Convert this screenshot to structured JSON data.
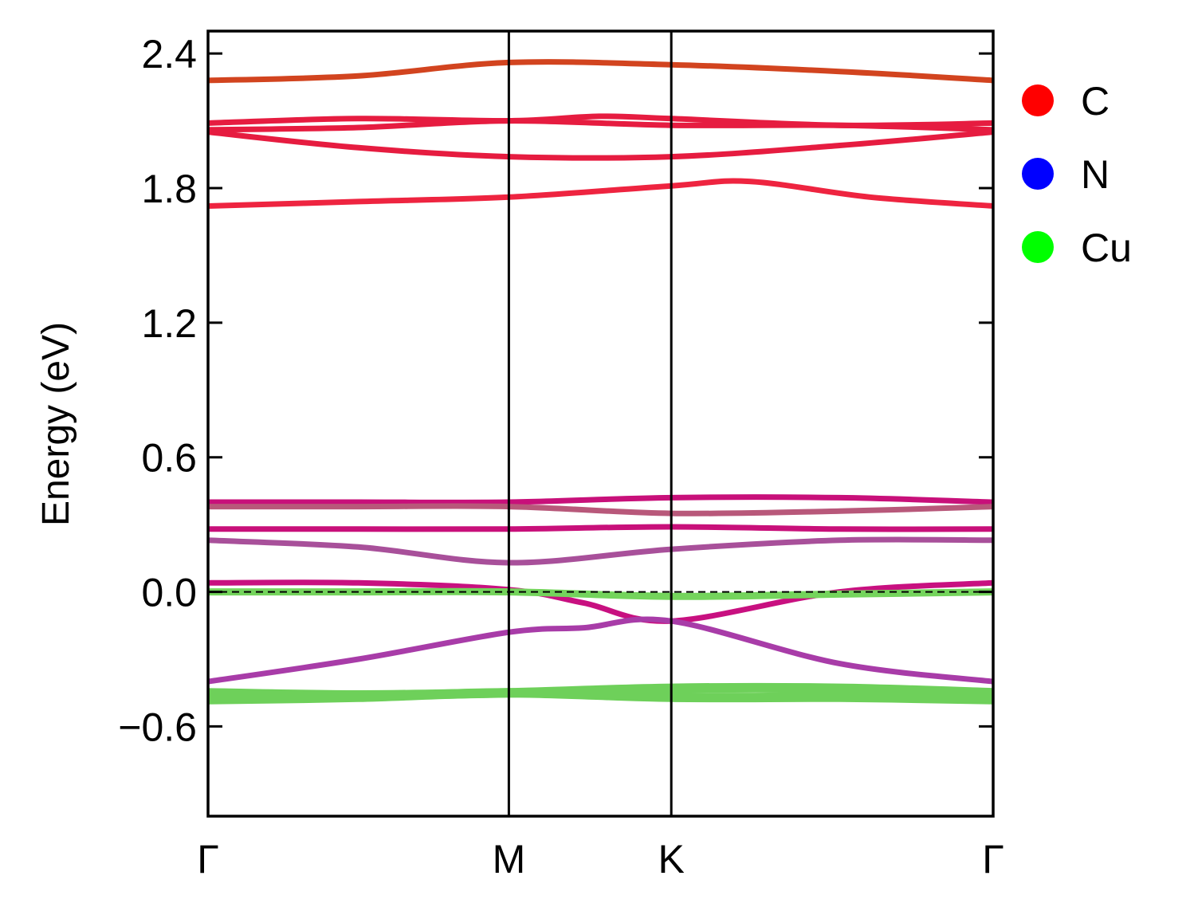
{
  "chart_data": {
    "type": "line",
    "ylabel": "Energy (eV)",
    "ylim": [
      -1.0,
      2.5
    ],
    "yticks": [
      2.4,
      1.8,
      1.2,
      0.6,
      0.0,
      -0.6
    ],
    "ytick_labels": [
      "2.4",
      "1.8",
      "1.2",
      "0.6",
      "0.0",
      "−0.6"
    ],
    "kpath_labels": [
      "Γ",
      "M",
      "K",
      "Γ"
    ],
    "kpath_positions": [
      0,
      1,
      1.54,
      2.61
    ],
    "fermi_level": 0.0,
    "legend": [
      {
        "name": "C",
        "color": "#ff0000"
      },
      {
        "name": "N",
        "color": "#0000ff"
      },
      {
        "name": "Cu",
        "color": "#00ff00"
      }
    ],
    "series": [
      {
        "color": "#d2441f",
        "width": 7,
        "x": [
          0,
          0.5,
          1,
          1.54,
          2.1,
          2.61
        ],
        "y": [
          2.28,
          2.3,
          2.36,
          2.35,
          2.32,
          2.28
        ]
      },
      {
        "color": "#e61c40",
        "width": 7,
        "x": [
          0,
          0.5,
          1,
          1.3,
          1.54,
          2.1,
          2.61
        ],
        "y": [
          2.09,
          2.11,
          2.1,
          2.12,
          2.11,
          2.08,
          2.09
        ]
      },
      {
        "color": "#e61c40",
        "width": 7,
        "x": [
          0,
          0.5,
          1,
          1.54,
          2.1,
          2.61
        ],
        "y": [
          2.06,
          2.07,
          2.1,
          2.08,
          2.08,
          2.06
        ]
      },
      {
        "color": "#e61c40",
        "width": 7,
        "x": [
          0,
          0.5,
          1,
          1.54,
          2.1,
          2.61
        ],
        "y": [
          2.05,
          1.98,
          1.94,
          1.94,
          1.99,
          2.05
        ]
      },
      {
        "color": "#ee2440",
        "width": 7,
        "x": [
          0,
          0.5,
          1,
          1.54,
          1.8,
          2.2,
          2.61
        ],
        "y": [
          1.72,
          1.74,
          1.76,
          1.81,
          1.83,
          1.76,
          1.72
        ]
      },
      {
        "color": "#c8107a",
        "width": 7,
        "x": [
          0,
          0.5,
          1,
          1.54,
          2.1,
          2.61
        ],
        "y": [
          0.4,
          0.4,
          0.4,
          0.42,
          0.42,
          0.4
        ]
      },
      {
        "color": "#b8587a",
        "width": 7,
        "x": [
          0,
          0.5,
          1,
          1.54,
          2.1,
          2.61
        ],
        "y": [
          0.38,
          0.38,
          0.38,
          0.35,
          0.36,
          0.38
        ]
      },
      {
        "color": "#c8107a",
        "width": 7,
        "x": [
          0,
          0.5,
          1,
          1.54,
          2.1,
          2.61
        ],
        "y": [
          0.28,
          0.28,
          0.28,
          0.29,
          0.28,
          0.28
        ]
      },
      {
        "color": "#a8509a",
        "width": 7,
        "x": [
          0,
          0.5,
          1,
          1.54,
          2.1,
          2.61
        ],
        "y": [
          0.23,
          0.2,
          0.13,
          0.19,
          0.23,
          0.23
        ]
      },
      {
        "color": "#c81080",
        "width": 7,
        "x": [
          0,
          0.5,
          1,
          1.25,
          1.54,
          2.1,
          2.61
        ],
        "y": [
          0.04,
          0.04,
          0.01,
          -0.05,
          -0.13,
          0.0,
          0.04
        ]
      },
      {
        "color": "#74d45c",
        "width": 9,
        "x": [
          0,
          0.5,
          1,
          1.54,
          2.1,
          2.61
        ],
        "y": [
          0.0,
          0.0,
          0.0,
          -0.02,
          -0.01,
          0.0
        ]
      },
      {
        "color": "#a83ca8",
        "width": 7,
        "x": [
          0,
          0.5,
          1,
          1.25,
          1.54,
          2.1,
          2.61
        ],
        "y": [
          -0.4,
          -0.3,
          -0.18,
          -0.16,
          -0.13,
          -0.32,
          -0.4
        ]
      },
      {
        "color": "#6ed05a",
        "width": 12,
        "x": [
          0,
          0.5,
          1,
          1.54,
          2.1,
          2.61
        ],
        "y": [
          -0.45,
          -0.46,
          -0.45,
          -0.43,
          -0.43,
          -0.45
        ]
      },
      {
        "color": "#6ed05a",
        "width": 12,
        "x": [
          0,
          0.5,
          1,
          1.54,
          2.1,
          2.61
        ],
        "y": [
          -0.48,
          -0.47,
          -0.45,
          -0.47,
          -0.47,
          -0.48
        ]
      }
    ]
  }
}
